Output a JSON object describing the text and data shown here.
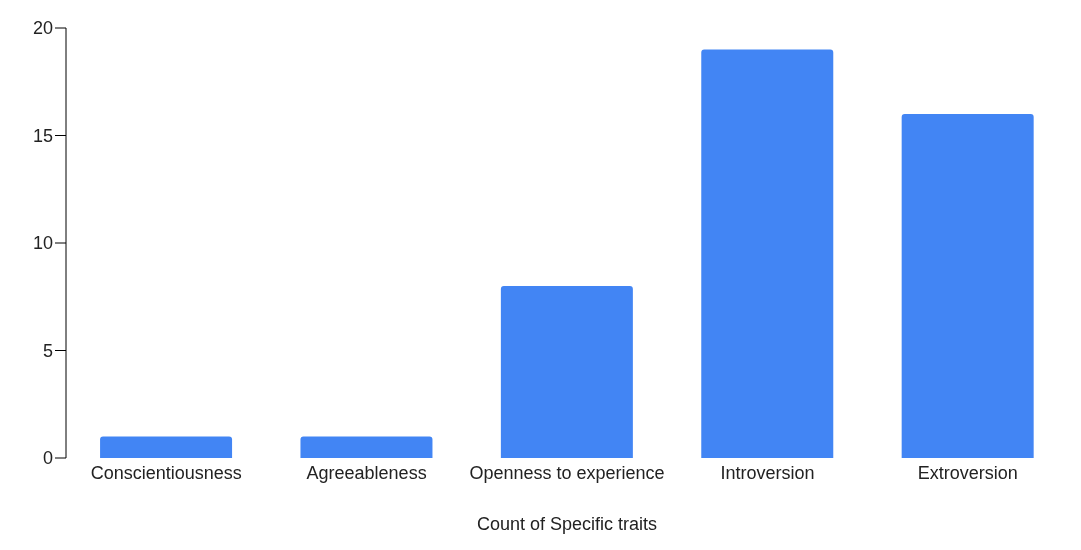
{
  "chart_data": {
    "type": "bar",
    "xlabel": "Count of Specific traits",
    "categories": [
      "Conscientiousness",
      "Agreeableness",
      "Openness to experience",
      "Introversion",
      "Extroversion"
    ],
    "values": [
      1,
      1,
      8,
      19,
      16
    ],
    "color": "#4285f4",
    "ylim": [
      0,
      20
    ],
    "yticks": [
      0,
      5,
      10,
      15,
      20
    ],
    "grid": false,
    "legend": false
  }
}
